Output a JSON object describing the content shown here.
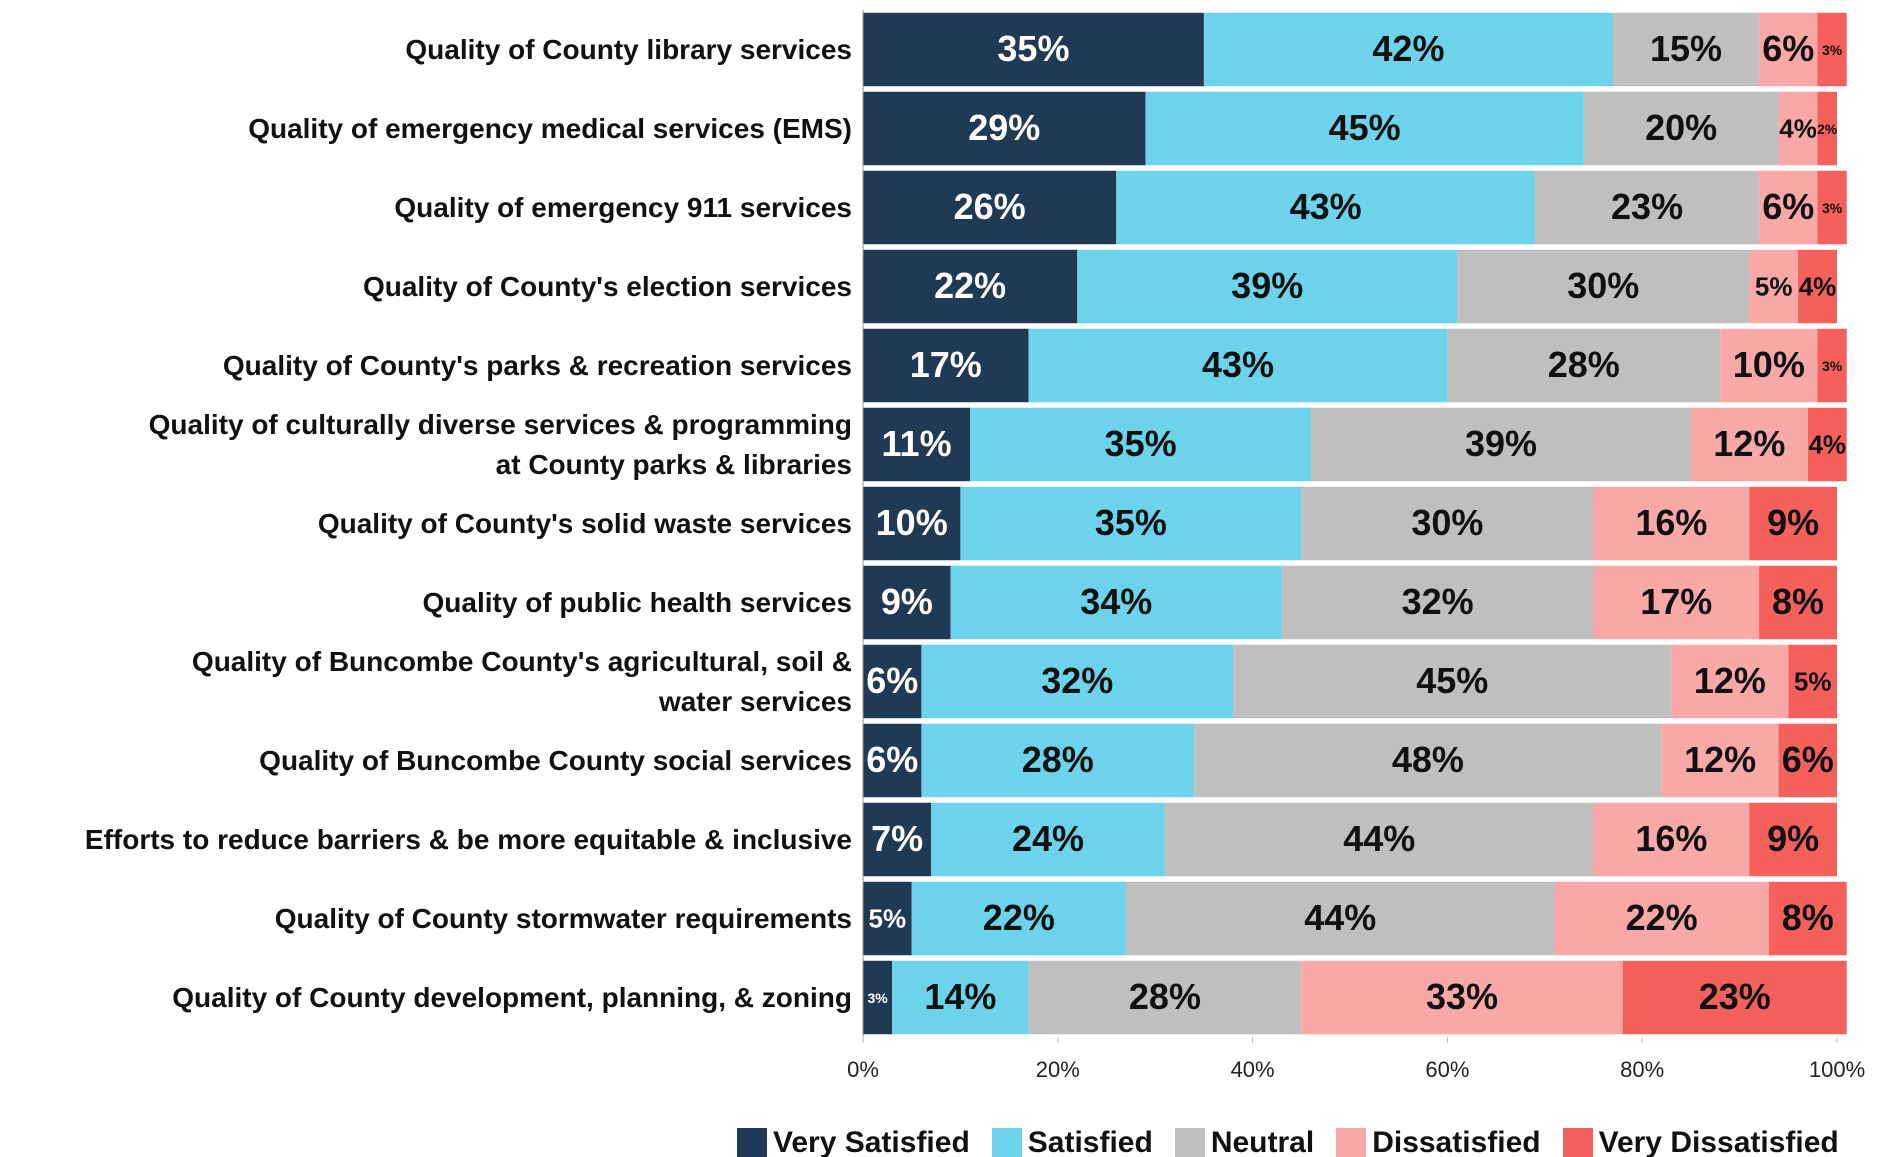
{
  "chart_data": {
    "type": "stacked_barh",
    "categories": [
      "Quality of County library services",
      "Quality of emergency medical services (EMS)",
      "Quality of emergency 911 services",
      "Quality of County's election services",
      "Quality of County's parks & recreation services",
      "Quality of culturally diverse services & programming\nat County parks & libraries",
      "Quality of County's solid waste services",
      "Quality of public health services",
      "Quality of Buncombe County's agricultural, soil &\nwater services",
      "Quality of Buncombe County social services",
      "Efforts to reduce barriers & be more equitable & inclusive",
      "Quality of County stormwater requirements",
      "Quality of County development, planning, & zoning"
    ],
    "series": [
      {
        "name": "Very Satisfied",
        "color": "#203a55",
        "values": [
          35,
          29,
          26,
          22,
          17,
          11,
          10,
          9,
          6,
          6,
          7,
          5,
          3
        ],
        "value_labels": [
          "35%",
          "29%",
          "26%",
          "22%",
          "17%",
          "11%",
          "10%",
          "9%",
          "6%",
          "6%",
          "7%",
          "5%",
          "3%"
        ]
      },
      {
        "name": "Satisfied",
        "color": "#6dd3ea",
        "values": [
          42,
          45,
          43,
          39,
          43,
          35,
          35,
          34,
          32,
          28,
          24,
          22,
          14
        ],
        "value_labels": [
          "42%",
          "45%",
          "43%",
          "39%",
          "43%",
          "35%",
          "35%",
          "34%",
          "32%",
          "28%",
          "24%",
          "22%",
          "14%"
        ]
      },
      {
        "name": "Neutral",
        "color": "#bfbfbf",
        "values": [
          15,
          20,
          23,
          30,
          28,
          39,
          30,
          32,
          45,
          48,
          44,
          44,
          28
        ],
        "value_labels": [
          "15%",
          "20%",
          "23%",
          "30%",
          "28%",
          "39%",
          "30%",
          "32%",
          "45%",
          "48%",
          "44%",
          "44%",
          "28%"
        ]
      },
      {
        "name": "Dissatisfied",
        "color": "#f9a8a8",
        "values": [
          6,
          4,
          6,
          5,
          10,
          12,
          16,
          17,
          12,
          12,
          16,
          22,
          33
        ],
        "value_labels": [
          "6%",
          "4%",
          "6%",
          "5%",
          "10%",
          "12%",
          "16%",
          "17%",
          "12%",
          "12%",
          "16%",
          "22%",
          "33%"
        ]
      },
      {
        "name": "Very Dissatisfied",
        "color": "#f4615c",
        "values": [
          3,
          2,
          3,
          4,
          3,
          4,
          9,
          8,
          5,
          6,
          9,
          8,
          23
        ],
        "value_labels": [
          "3%",
          "2%",
          "3%",
          "4%",
          "3%",
          "4%",
          "9%",
          "8%",
          "5%",
          "6%",
          "9%",
          "8%",
          "23%"
        ]
      }
    ],
    "xlim": [
      0,
      100
    ],
    "xticks": [
      {
        "value": 0,
        "label": "0%"
      },
      {
        "value": 20,
        "label": "20%"
      },
      {
        "value": 40,
        "label": "40%"
      },
      {
        "value": 60,
        "label": "60%"
      },
      {
        "value": 80,
        "label": "80%"
      },
      {
        "value": 100,
        "label": "100%"
      }
    ],
    "legend": "bottom"
  }
}
